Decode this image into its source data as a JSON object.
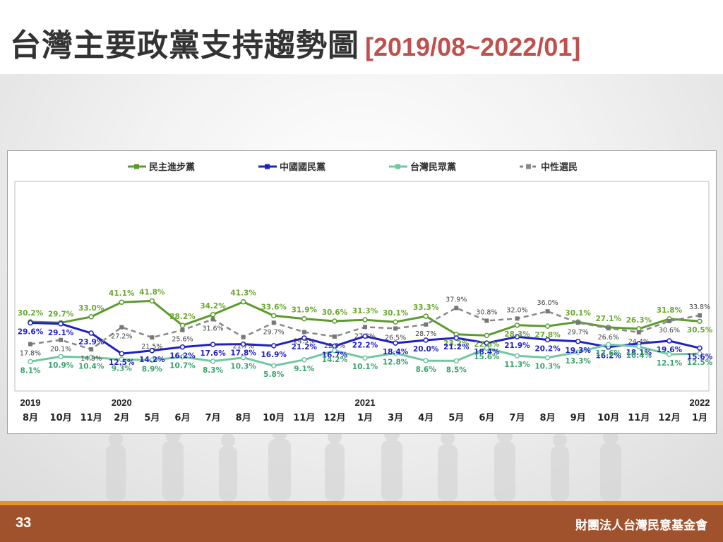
{
  "header": {
    "title": "台灣主要政黨支持趨勢圖",
    "subtitle": "[2019/08~2022/01]"
  },
  "footer": {
    "page_number": "33",
    "organization": "財團法人台灣民意基金會"
  },
  "chart_data": {
    "type": "line",
    "x": [
      "8月",
      "10月",
      "11月",
      "2月",
      "5月",
      "6月",
      "7月",
      "8月",
      "10月",
      "11月",
      "12月",
      "1月",
      "3月",
      "4月",
      "5月",
      "6月",
      "7月",
      "8月",
      "9月",
      "10月",
      "11月",
      "12月",
      "1月"
    ],
    "year_labels": [
      {
        "index": 0,
        "label": "2019"
      },
      {
        "index": 3,
        "label": "2020"
      },
      {
        "index": 11,
        "label": "2021"
      },
      {
        "index": 22,
        "label": "2022"
      }
    ],
    "ylim": [
      0,
      45
    ],
    "legend_position": "top",
    "series": [
      {
        "name": "民主進步黨",
        "color": "#5b9b2c",
        "label_color": "#6aa82e",
        "dashed": false,
        "values": [
          30.2,
          29.7,
          33.0,
          41.1,
          41.8,
          28.2,
          34.2,
          41.3,
          33.6,
          31.9,
          30.6,
          31.3,
          30.1,
          33.3,
          23.2,
          22.6,
          28.3,
          27.8,
          30.1,
          27.1,
          26.3,
          31.8,
          30.5
        ],
        "labels": [
          "30.2%",
          "29.7%",
          "33.0%",
          "41.1%",
          "41.8%",
          "28.2%",
          "34.2%",
          "41.3%",
          "33.6%",
          "31.9%",
          "30.6%",
          "31.3%",
          "30.1%",
          "33.3%",
          "23.2%",
          "22.6%",
          "28.3%",
          "27.8%",
          "30.1%",
          "27.1%",
          "26.3%",
          "31.8%",
          "30.5%"
        ]
      },
      {
        "name": "中國國民黨",
        "color": "#1f1fc8",
        "label_color": "#1f1fc8",
        "dashed": false,
        "values": [
          29.6,
          29.1,
          23.9,
          12.5,
          14.2,
          16.2,
          17.6,
          17.8,
          16.9,
          21.2,
          16.7,
          22.2,
          18.4,
          20.0,
          21.2,
          18.4,
          21.9,
          20.2,
          19.3,
          16.2,
          18.1,
          19.6,
          15.6
        ],
        "labels": [
          "29.6%",
          "29.1%",
          "23.9%",
          "12.5%",
          "14.2%",
          "16.2%",
          "17.6%",
          "17.8%",
          "16.9%",
          "21.2%",
          "16.7%",
          "22.2%",
          "18.4%",
          "20.0%",
          "21.2%",
          "18.4%",
          "21.9%",
          "20.2%",
          "19.3%",
          "16.2%",
          "18.1%",
          "19.6%",
          "15.6%"
        ]
      },
      {
        "name": "台灣民眾黨",
        "color": "#6fc8a0",
        "label_color": "#3aa36e",
        "dashed": false,
        "values": [
          8.1,
          10.9,
          10.4,
          9.3,
          8.9,
          10.7,
          8.3,
          10.3,
          5.8,
          9.1,
          14.2,
          10.1,
          12.8,
          8.6,
          8.5,
          15.6,
          11.3,
          10.3,
          13.3,
          17.6,
          16.4,
          12.1,
          12.5
        ],
        "labels": [
          "8.1%",
          "10.9%",
          "10.4%",
          "9.3%",
          "8.9%",
          "10.7%",
          "8.3%",
          "10.3%",
          "5.8%",
          "9.1%",
          "14.2%",
          "10.1%",
          "12.8%",
          "8.6%",
          "8.5%",
          "15.6%",
          "11.3%",
          "10.3%",
          "13.3%",
          "17.6%",
          "16.4%",
          "12.1%",
          "12.5%"
        ]
      },
      {
        "name": "中性選民",
        "color": "#888888",
        "label_color": "#444444",
        "dashed": true,
        "values": [
          17.8,
          20.1,
          14.9,
          27.2,
          21.5,
          25.6,
          31.6,
          21.7,
          29.7,
          24.5,
          22.0,
          27.3,
          26.5,
          28.7,
          37.9,
          30.8,
          32.0,
          36.0,
          29.7,
          26.6,
          24.4,
          30.6,
          33.8
        ],
        "labels": [
          "17.8%",
          "20.1%",
          "14.9%",
          "27.2%",
          "21.5%",
          "25.6%",
          "31.6%",
          "21.7%",
          "29.7%",
          "24.5%",
          "22.0%",
          "27.3%",
          "26.5%",
          "28.7%",
          "37.9%",
          "30.8%",
          "32.0%",
          "36.0%",
          "29.7%",
          "26.6%",
          "24.4%",
          "30.6%",
          "33.8%"
        ]
      }
    ]
  }
}
